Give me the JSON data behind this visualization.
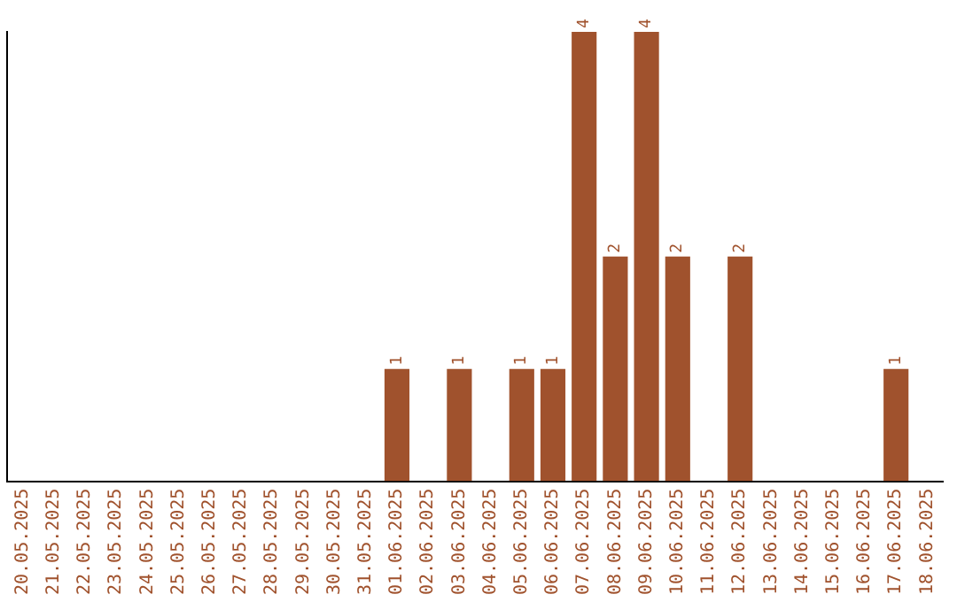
{
  "chart_data": {
    "type": "bar",
    "categories": [
      "20.05.2025",
      "21.05.2025",
      "22.05.2025",
      "23.05.2025",
      "24.05.2025",
      "25.05.2025",
      "26.05.2025",
      "27.05.2025",
      "28.05.2025",
      "29.05.2025",
      "30.05.2025",
      "31.05.2025",
      "01.06.2025",
      "02.06.2025",
      "03.06.2025",
      "04.06.2025",
      "05.06.2025",
      "06.06.2025",
      "07.06.2025",
      "08.06.2025",
      "09.06.2025",
      "10.06.2025",
      "11.06.2025",
      "12.06.2025",
      "13.06.2025",
      "14.06.2025",
      "15.06.2025",
      "16.06.2025",
      "17.06.2025",
      "18.06.2025"
    ],
    "values": [
      null,
      null,
      null,
      null,
      null,
      null,
      null,
      null,
      null,
      null,
      null,
      null,
      1,
      null,
      1,
      null,
      1,
      1,
      4,
      2,
      4,
      2,
      null,
      2,
      null,
      null,
      null,
      null,
      1,
      null
    ],
    "data_labels": true,
    "tick_labels": "x",
    "color": "#a0522d",
    "grid": false,
    "legend": false
  }
}
